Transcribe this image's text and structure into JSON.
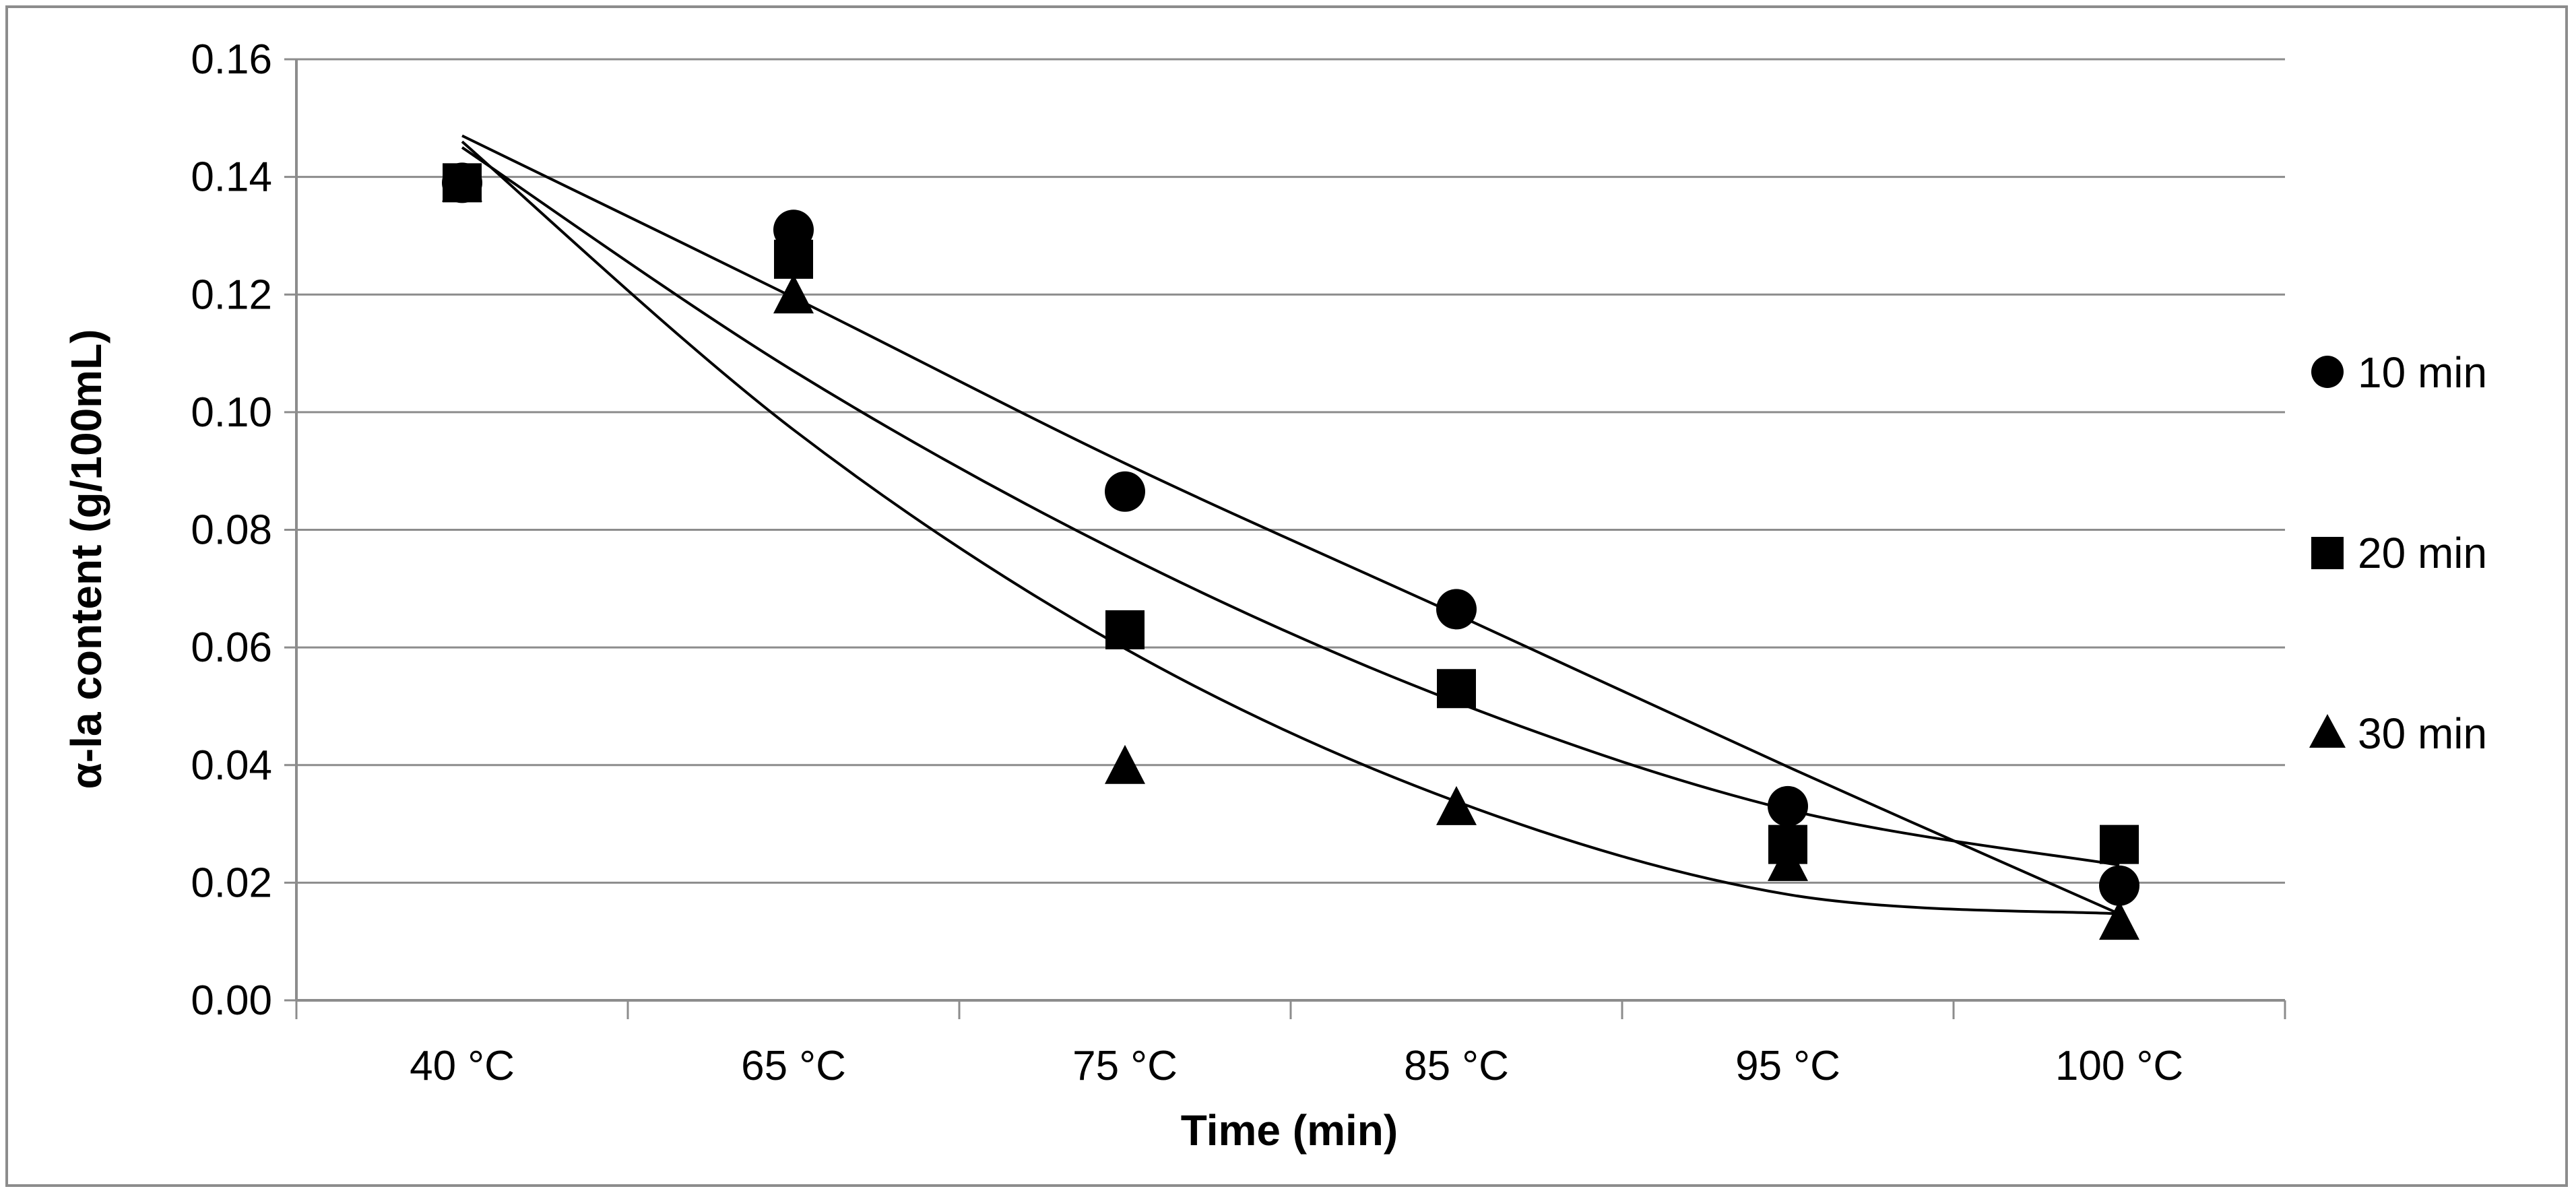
{
  "chart_data": {
    "type": "scatter",
    "title": "",
    "xlabel": "Time (min)",
    "ylabel": "α-la content (g/100mL)",
    "categories": [
      "40 °C",
      "65 °C",
      "75 °C",
      "85 °C",
      "95 °C",
      "100 °C"
    ],
    "ylim": [
      0,
      0.16
    ],
    "yticks": [
      "0.00",
      "0.02",
      "0.04",
      "0.06",
      "0.08",
      "0.10",
      "0.12",
      "0.14",
      "0.16"
    ],
    "grid": true,
    "legend_position": "right",
    "series": [
      {
        "name": "10 min",
        "marker": "circle",
        "values": [
          0.139,
          0.131,
          0.0865,
          0.0665,
          0.033,
          0.0195
        ],
        "trendline": [
          0.147,
          0.1195,
          0.0913,
          0.0656,
          0.0397,
          0.0147
        ]
      },
      {
        "name": "20 min",
        "marker": "square",
        "values": [
          0.139,
          0.126,
          0.063,
          0.053,
          0.0265,
          0.0265
        ],
        "trendline": [
          0.145,
          0.107,
          0.0757,
          0.0507,
          0.0324,
          0.023
        ]
      },
      {
        "name": "30 min",
        "marker": "triangle",
        "values": [
          0.139,
          0.12,
          0.04,
          0.033,
          0.0235,
          0.0135
        ],
        "trendline": [
          0.146,
          0.097,
          0.0598,
          0.0338,
          0.018,
          0.0147
        ]
      }
    ],
    "colors": {
      "marker": "#000000",
      "grid": "#8c8c8c",
      "axis": "#8c8c8c"
    }
  }
}
